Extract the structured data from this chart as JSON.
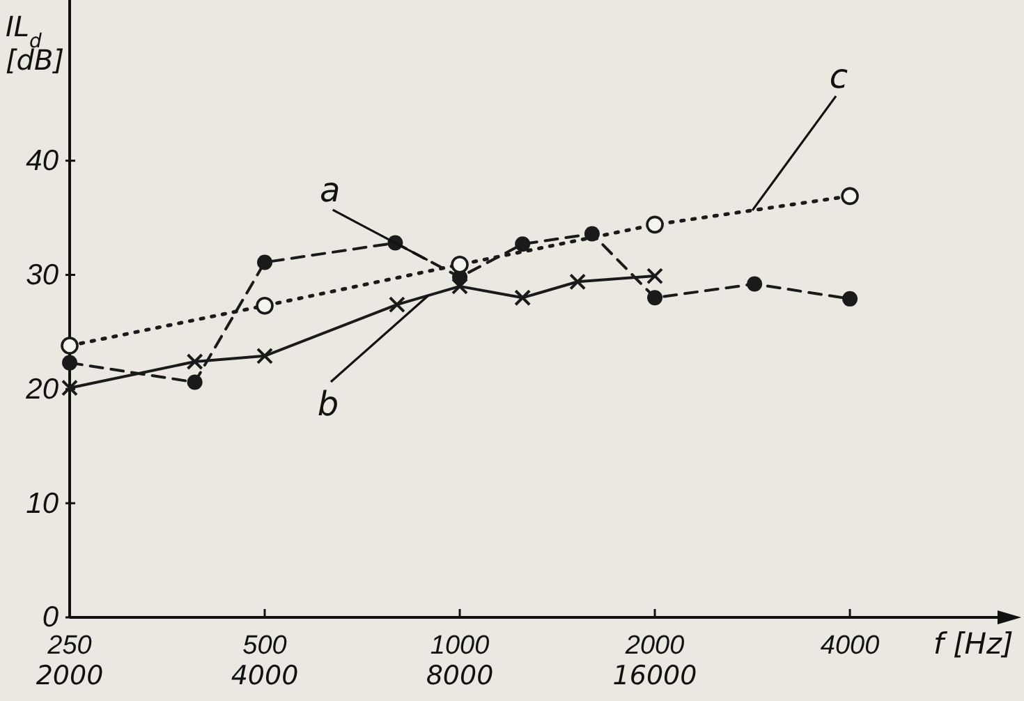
{
  "chart_data": {
    "type": "line",
    "xlabel": "f [Hz]",
    "ylabel": "IL$_{d}$ [dB]",
    "log": "x",
    "xlim": [
      250,
      5600
    ],
    "ylim": [
      0,
      52
    ],
    "xticks": [
      250,
      500,
      1000,
      2000,
      4000
    ],
    "annotations": [
      "2000",
      "4000",
      "8000",
      "16000"
    ],
    "yticks": [
      0,
      10,
      20,
      30,
      40
    ],
    "grid": false,
    "series": [
      {
        "name": "a",
        "color": "#1a1a1a",
        "marker": "circle",
        "line_style": "dashed",
        "x": [
          250,
          390,
          500,
          795,
          1000,
          1250,
          1600,
          2000,
          2850,
          4000
        ],
        "values": [
          22.3,
          20.6,
          31.1,
          32.8,
          29.8,
          32.7,
          33.6,
          28.0,
          29.2,
          27.9
        ]
      },
      {
        "name": "b",
        "color": "#1a1a1a",
        "marker": "cross",
        "line_style": "solid",
        "x": [
          250,
          390,
          500,
          800,
          1000,
          1250,
          1520,
          2000
        ],
        "values": [
          20.1,
          22.4,
          22.9,
          27.4,
          29.0,
          28.0,
          29.4,
          29.9
        ]
      },
      {
        "name": "c",
        "color": "#1a1a1a",
        "marker": "circle-open",
        "line_style": "dotted",
        "x": [
          250,
          500,
          1000,
          2000,
          4000
        ],
        "values": [
          23.8,
          27.3,
          30.9,
          34.4,
          36.9
        ]
      }
    ]
  }
}
